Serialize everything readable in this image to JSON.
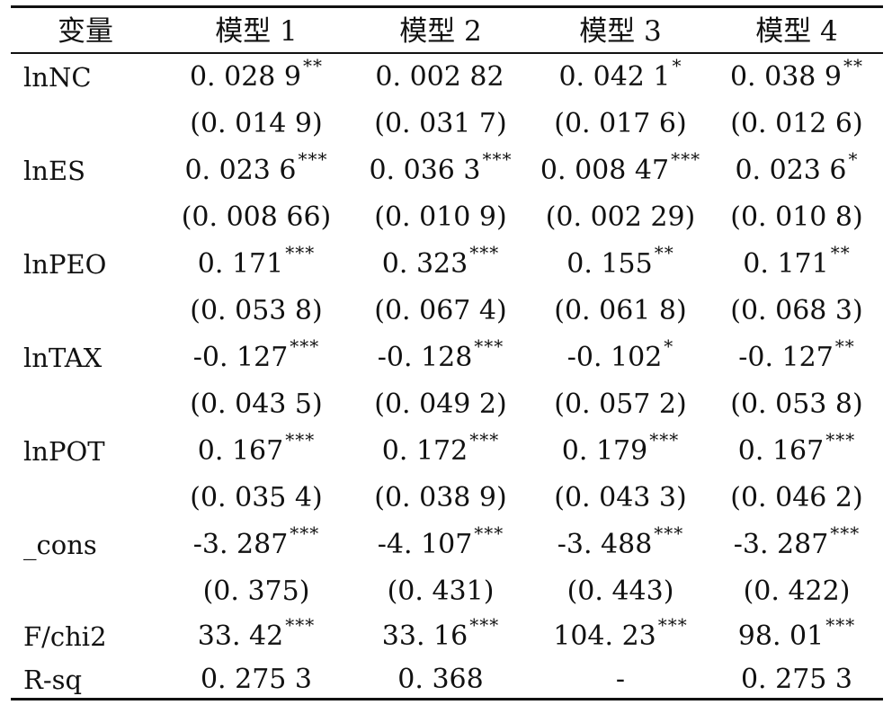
{
  "header": {
    "var": "变量",
    "m1": "模型 1",
    "m2": "模型 2",
    "m3": "模型 3",
    "m4": "模型 4"
  },
  "rows": [
    {
      "label": "lnNC",
      "c1": {
        "v": "0. 028 9",
        "s": "**"
      },
      "c2": {
        "v": "0. 002 82",
        "s": ""
      },
      "c3": {
        "v": "0. 042 1",
        "s": "*"
      },
      "c4": {
        "v": "0. 038 9",
        "s": "**"
      }
    },
    {
      "label": "",
      "c1": {
        "v": "(0. 014 9)",
        "s": ""
      },
      "c2": {
        "v": "(0. 031 7)",
        "s": ""
      },
      "c3": {
        "v": "(0. 017 6)",
        "s": ""
      },
      "c4": {
        "v": "(0. 012 6)",
        "s": ""
      }
    },
    {
      "label": "lnES",
      "c1": {
        "v": "0. 023 6",
        "s": "***"
      },
      "c2": {
        "v": "0. 036 3",
        "s": "***"
      },
      "c3": {
        "v": "0. 008 47",
        "s": "***"
      },
      "c4": {
        "v": "0. 023 6",
        "s": "*"
      }
    },
    {
      "label": "",
      "c1": {
        "v": "(0. 008 66)",
        "s": ""
      },
      "c2": {
        "v": "(0. 010 9)",
        "s": ""
      },
      "c3": {
        "v": "(0. 002 29)",
        "s": ""
      },
      "c4": {
        "v": "(0. 010 8)",
        "s": ""
      }
    },
    {
      "label": "lnPEO",
      "c1": {
        "v": "0. 171",
        "s": "***"
      },
      "c2": {
        "v": "0. 323",
        "s": "***"
      },
      "c3": {
        "v": "0. 155",
        "s": "**"
      },
      "c4": {
        "v": "0. 171",
        "s": "**"
      }
    },
    {
      "label": "",
      "c1": {
        "v": "(0. 053 8)",
        "s": ""
      },
      "c2": {
        "v": "(0. 067 4)",
        "s": ""
      },
      "c3": {
        "v": "(0. 061 8)",
        "s": ""
      },
      "c4": {
        "v": "(0. 068 3)",
        "s": ""
      }
    },
    {
      "label": "lnTAX",
      "c1": {
        "v": "-0. 127",
        "s": "***"
      },
      "c2": {
        "v": "-0. 128",
        "s": "***"
      },
      "c3": {
        "v": "-0. 102",
        "s": "*"
      },
      "c4": {
        "v": "-0. 127",
        "s": "**"
      }
    },
    {
      "label": "",
      "c1": {
        "v": "(0. 043 5)",
        "s": ""
      },
      "c2": {
        "v": "(0. 049 2)",
        "s": ""
      },
      "c3": {
        "v": "(0. 057 2)",
        "s": ""
      },
      "c4": {
        "v": "(0. 053 8)",
        "s": ""
      }
    },
    {
      "label": "lnPOT",
      "c1": {
        "v": "0. 167",
        "s": "***"
      },
      "c2": {
        "v": "0. 172",
        "s": "***"
      },
      "c3": {
        "v": "0. 179",
        "s": "***"
      },
      "c4": {
        "v": "0. 167",
        "s": "***"
      }
    },
    {
      "label": "",
      "c1": {
        "v": "(0. 035 4)",
        "s": ""
      },
      "c2": {
        "v": "(0. 038 9)",
        "s": ""
      },
      "c3": {
        "v": "(0. 043 3)",
        "s": ""
      },
      "c4": {
        "v": "(0. 046 2)",
        "s": ""
      }
    },
    {
      "label": "_cons",
      "c1": {
        "v": "-3. 287",
        "s": "***"
      },
      "c2": {
        "v": "-4. 107",
        "s": "***"
      },
      "c3": {
        "v": "-3. 488",
        "s": "***"
      },
      "c4": {
        "v": "-3. 287",
        "s": "***"
      }
    },
    {
      "label": "",
      "c1": {
        "v": "(0. 375)",
        "s": ""
      },
      "c2": {
        "v": "(0. 431)",
        "s": ""
      },
      "c3": {
        "v": "(0. 443)",
        "s": ""
      },
      "c4": {
        "v": "(0. 422)",
        "s": ""
      }
    },
    {
      "label": "F/chi2",
      "c1": {
        "v": "33. 42",
        "s": "***"
      },
      "c2": {
        "v": "33. 16",
        "s": "***"
      },
      "c3": {
        "v": "104. 23",
        "s": "***"
      },
      "c4": {
        "v": "98. 01",
        "s": "***"
      }
    },
    {
      "label": "R-sq",
      "c1": {
        "v": "0. 275 3",
        "s": ""
      },
      "c2": {
        "v": "0. 368",
        "s": ""
      },
      "c3": {
        "v": "-",
        "s": ""
      },
      "c4": {
        "v": "0. 275 3",
        "s": ""
      }
    }
  ]
}
